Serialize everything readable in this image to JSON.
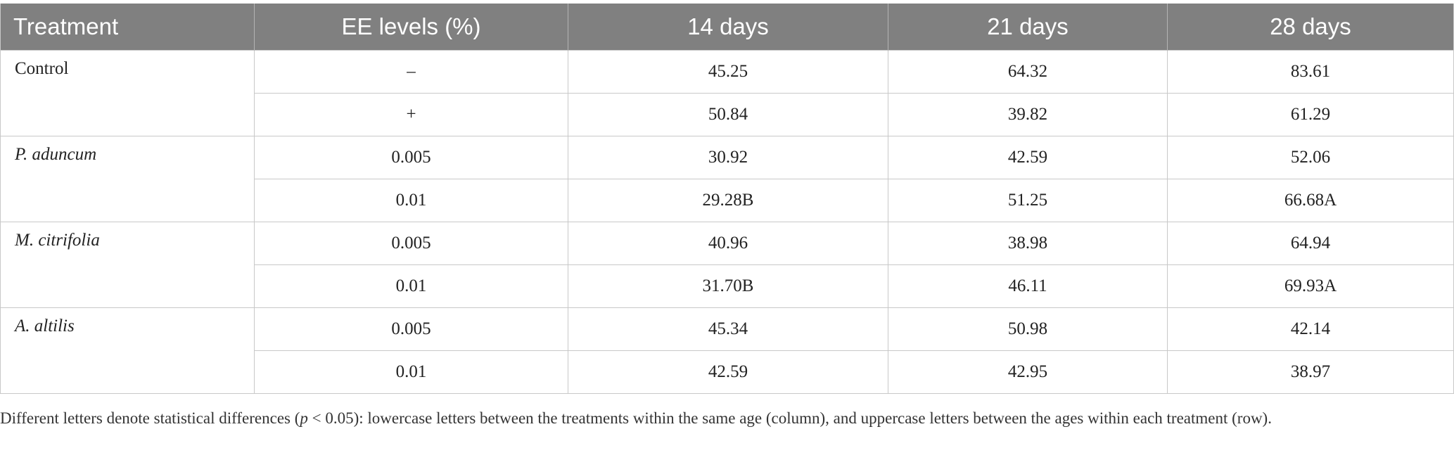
{
  "table": {
    "headers": [
      "Treatment",
      "EE levels (%)",
      "14 days",
      "21 days",
      "28 days"
    ],
    "groups": [
      {
        "treatment": "Control",
        "italic": false,
        "rows": [
          [
            "–",
            "45.25",
            "64.32",
            "83.61"
          ],
          [
            "+",
            "50.84",
            "39.82",
            "61.29"
          ]
        ]
      },
      {
        "treatment": "P. aduncum",
        "italic": true,
        "rows": [
          [
            "0.005",
            "30.92",
            "42.59",
            "52.06"
          ],
          [
            "0.01",
            "29.28B",
            "51.25",
            "66.68A"
          ]
        ]
      },
      {
        "treatment": "M. citrifolia",
        "italic": true,
        "rows": [
          [
            "0.005",
            "40.96",
            "38.98",
            "64.94"
          ],
          [
            "0.01",
            "31.70B",
            "46.11",
            "69.93A"
          ]
        ]
      },
      {
        "treatment": "A. altilis",
        "italic": true,
        "rows": [
          [
            "0.005",
            "45.34",
            "50.98",
            "42.14"
          ],
          [
            "0.01",
            "42.59",
            "42.95",
            "38.97"
          ]
        ]
      }
    ]
  },
  "footnote": {
    "before": "Different letters denote statistical differences (",
    "p": "p",
    "after": " < 0.05): lowercase letters between the treatments within the same age (column), and uppercase letters between the ages within each treatment (row)."
  }
}
